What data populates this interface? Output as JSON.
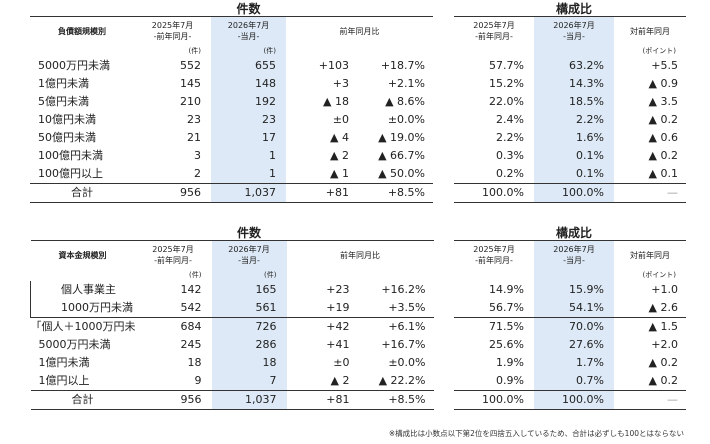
{
  "top": {
    "title_left": "件数",
    "title_right": "構成比",
    "headers": {
      "category": "負債額規模別",
      "prev": "2025年7月",
      "prev_sub": "-前年同月-",
      "curr": "2026年7月",
      "curr_sub": "-当月-",
      "yoy": "前年同月比",
      "ratio_prev": "2025年7月",
      "ratio_prev_sub": "-前年同月-",
      "ratio_curr": "2026年7月",
      "ratio_curr_sub": "-当月-",
      "ratio_yoy": "対前年同月"
    },
    "units": {
      "prev": "(件)",
      "curr": "(件)",
      "point": "(ポイント)"
    },
    "rows": [
      {
        "label": "5000万円未満",
        "prev": "552",
        "curr": "655",
        "diff": "+103",
        "pct": "+18.7%",
        "rprev": "57.7%",
        "rcurr": "63.2%",
        "rdiff": "+5.5"
      },
      {
        "label": "1億円未満",
        "prev": "145",
        "curr": "148",
        "diff": "+3",
        "pct": "+2.1%",
        "rprev": "15.2%",
        "rcurr": "14.3%",
        "rdiff": "▲ 0.9"
      },
      {
        "label": "5億円未満",
        "prev": "210",
        "curr": "192",
        "diff": "▲ 18",
        "pct": "▲ 8.6%",
        "rprev": "22.0%",
        "rcurr": "18.5%",
        "rdiff": "▲ 3.5"
      },
      {
        "label": "10億円未満",
        "prev": "23",
        "curr": "23",
        "diff": "±0",
        "pct": "±0.0%",
        "rprev": "2.4%",
        "rcurr": "2.2%",
        "rdiff": "▲ 0.2"
      },
      {
        "label": "50億円未満",
        "prev": "21",
        "curr": "17",
        "diff": "▲ 4",
        "pct": "▲ 19.0%",
        "rprev": "2.2%",
        "rcurr": "1.6%",
        "rdiff": "▲ 0.6"
      },
      {
        "label": "100億円未満",
        "prev": "3",
        "curr": "1",
        "diff": "▲ 2",
        "pct": "▲ 66.7%",
        "rprev": "0.3%",
        "rcurr": "0.1%",
        "rdiff": "▲ 0.2"
      },
      {
        "label": "100億円以上",
        "prev": "2",
        "curr": "1",
        "diff": "▲ 1",
        "pct": "▲ 50.0%",
        "rprev": "0.2%",
        "rcurr": "0.1%",
        "rdiff": "▲ 0.1"
      }
    ],
    "total": {
      "label": "合計",
      "prev": "956",
      "curr": "1,037",
      "diff": "+81",
      "pct": "+8.5%",
      "rprev": "100.0%",
      "rcurr": "100.0%",
      "rdiff": "—"
    }
  },
  "bottom": {
    "title_left": "件数",
    "title_right": "構成比",
    "headers": {
      "category": "資本金規模別",
      "prev": "2025年7月",
      "prev_sub": "-前年同月-",
      "curr": "2026年7月",
      "curr_sub": "-当月-",
      "yoy": "前年同月比",
      "ratio_prev": "2025年7月",
      "ratio_prev_sub": "-前年同月-",
      "ratio_curr": "2026年7月",
      "ratio_curr_sub": "-当月-",
      "ratio_yoy": "対前年同月"
    },
    "units": {
      "prev": "(件)",
      "curr": "(件)",
      "point": "(ポイント)"
    },
    "rows": [
      {
        "label": "個人事業主",
        "prev": "142",
        "curr": "165",
        "diff": "+23",
        "pct": "+16.2%",
        "rprev": "14.9%",
        "rcurr": "15.9%",
        "rdiff": "+1.0"
      },
      {
        "label": "1000万円未満",
        "prev": "542",
        "curr": "561",
        "diff": "+19",
        "pct": "+3.5%",
        "rprev": "56.7%",
        "rcurr": "54.1%",
        "rdiff": "▲ 2.6"
      },
      {
        "label": "「個人＋1000万円未満」",
        "prev": "684",
        "curr": "726",
        "diff": "+42",
        "pct": "+6.1%",
        "rprev": "71.5%",
        "rcurr": "70.0%",
        "rdiff": "▲ 1.5"
      },
      {
        "label": "5000万円未満",
        "prev": "245",
        "curr": "286",
        "diff": "+41",
        "pct": "+16.7%",
        "rprev": "25.6%",
        "rcurr": "27.6%",
        "rdiff": "+2.0"
      },
      {
        "label": "1億円未満",
        "prev": "18",
        "curr": "18",
        "diff": "±0",
        "pct": "±0.0%",
        "rprev": "1.9%",
        "rcurr": "1.7%",
        "rdiff": "▲ 0.2"
      },
      {
        "label": "1億円以上",
        "prev": "9",
        "curr": "7",
        "diff": "▲ 2",
        "pct": "▲ 22.2%",
        "rprev": "0.9%",
        "rcurr": "0.7%",
        "rdiff": "▲ 0.2"
      }
    ],
    "total": {
      "label": "合計",
      "prev": "956",
      "curr": "1,037",
      "diff": "+81",
      "pct": "+8.5%",
      "rprev": "100.0%",
      "rcurr": "100.0%",
      "rdiff": "—"
    }
  },
  "footnote": "※構成比は小数点以下第2位を四捨五入しているため、合計は必ずしも100とはならない"
}
